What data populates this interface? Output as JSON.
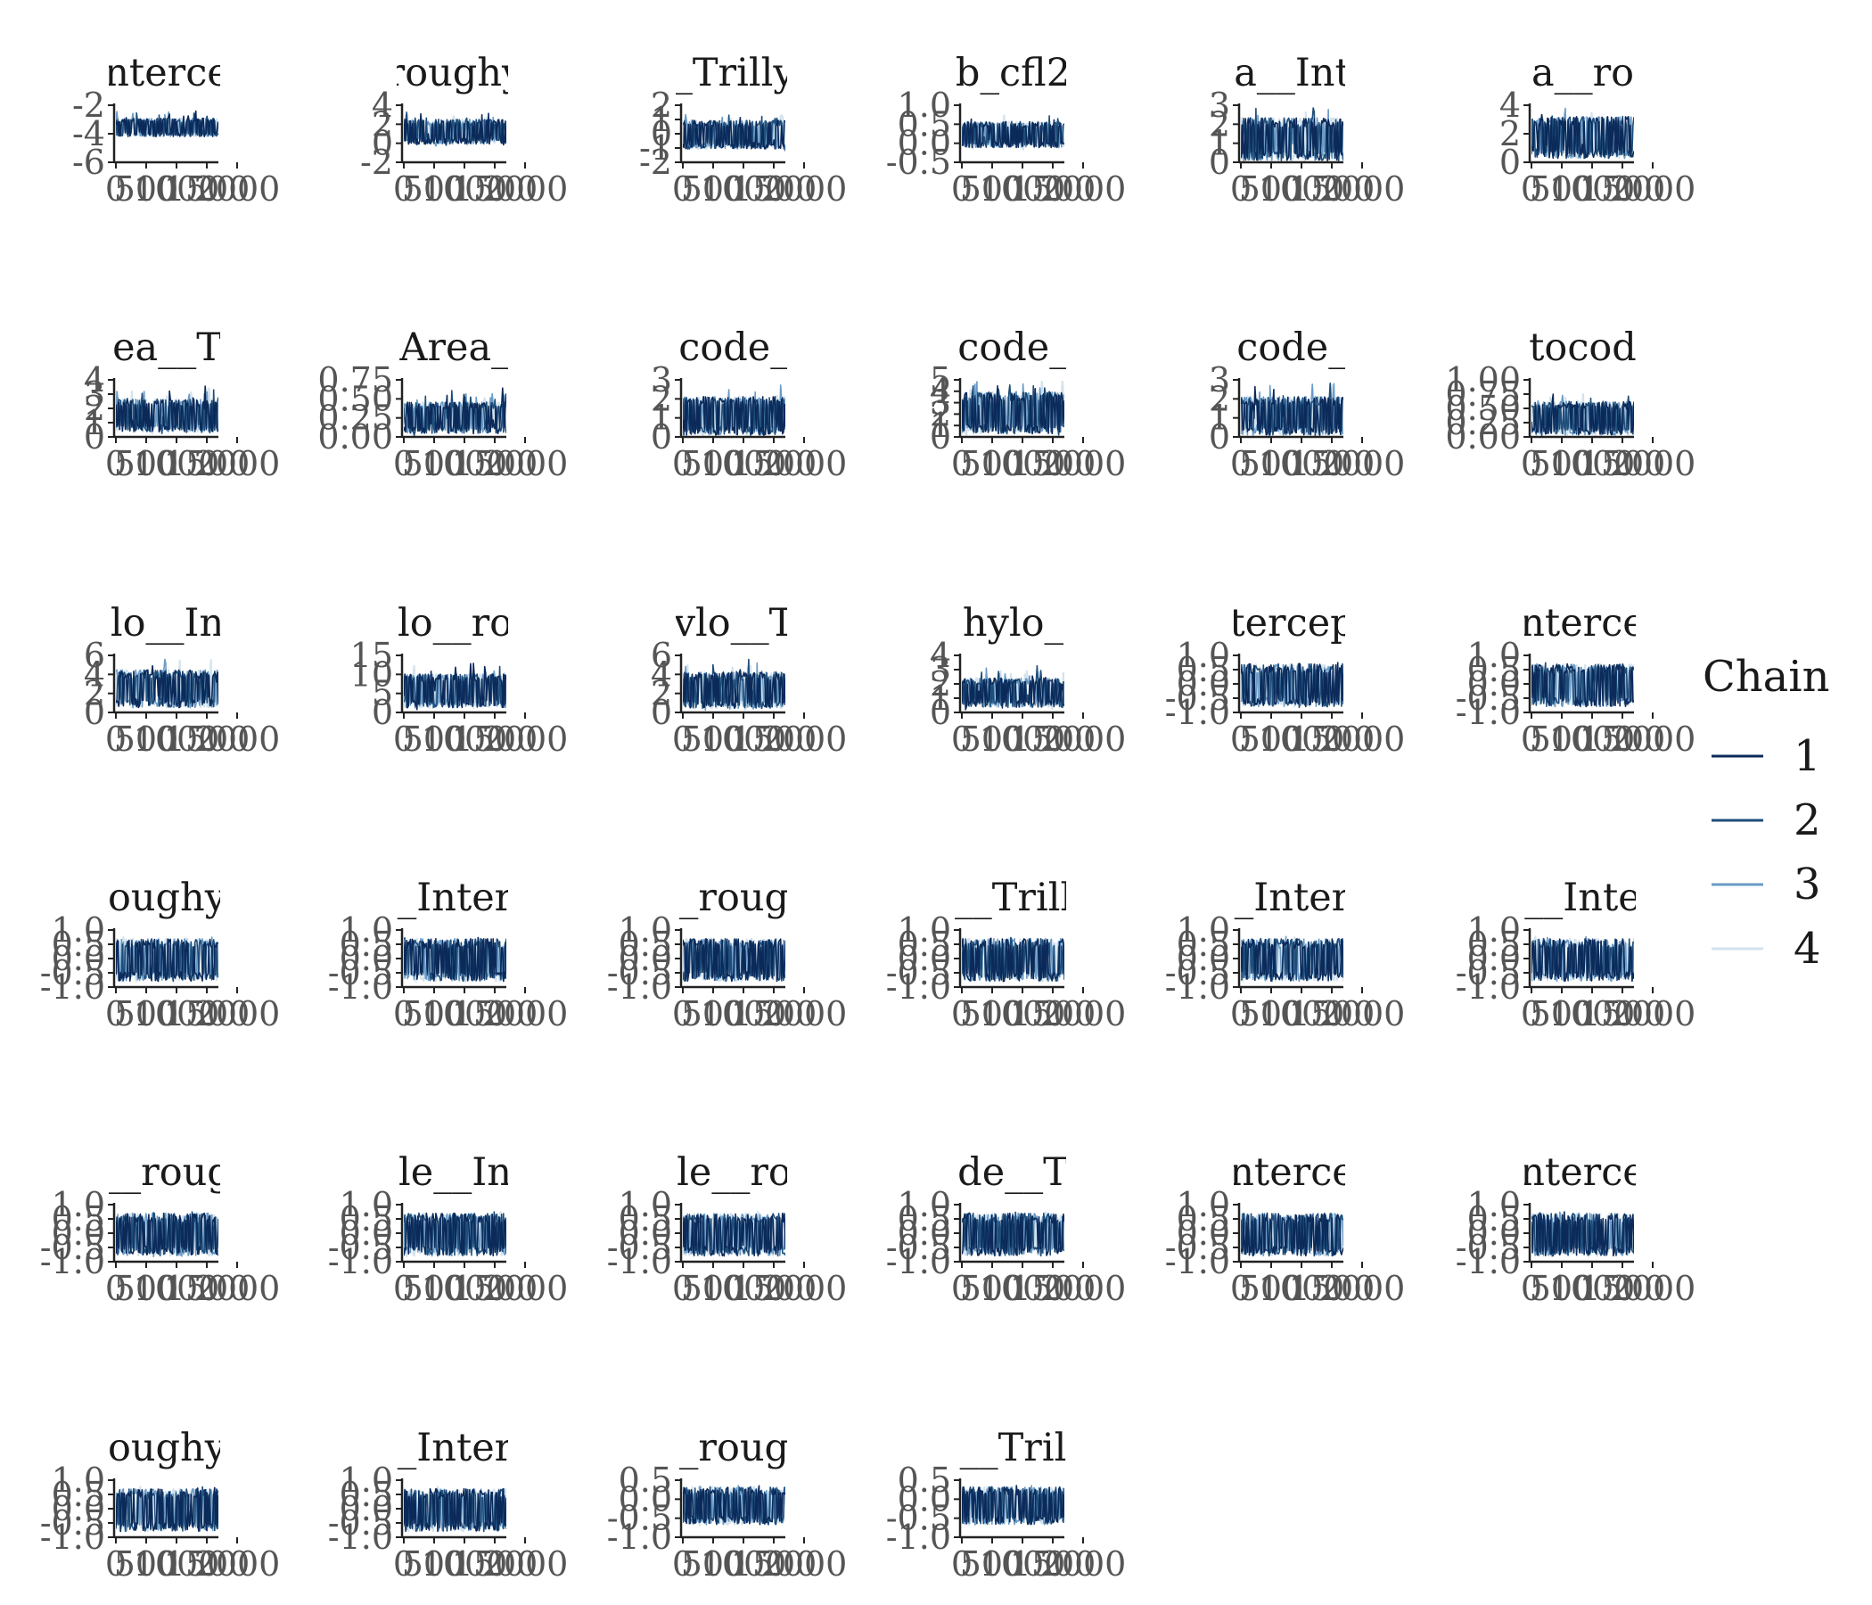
{
  "chart_data": {
    "type": "line",
    "legend": {
      "title": "Chain",
      "position": "right",
      "entries": [
        "1",
        "2",
        "3",
        "4"
      ]
    },
    "series_colors": [
      "#0b2a5a",
      "#1f4e7a",
      "#6b9bc6",
      "#d4e3ee"
    ],
    "x_ticks": [
      "0",
      "500",
      "1000",
      "1500",
      "2000"
    ],
    "xlim": [
      0,
      1700
    ],
    "panels": [
      {
        "title": "nterce",
        "yticks": [
          "-2",
          "-4",
          "-6"
        ],
        "ylim": [
          -6.6,
          -1.2
        ],
        "center": -3.2,
        "half": 0.9,
        "spike": 1.4
      },
      {
        "title": "roughy",
        "yticks": [
          "4",
          "2",
          "0",
          "-2"
        ],
        "ylim": [
          -2.6,
          5.0
        ],
        "center": 1.6,
        "half": 1.7,
        "spike": 1.8
      },
      {
        "title": "_Trilly",
        "yticks": [
          "2",
          "1",
          "0",
          "-1",
          "-2"
        ],
        "ylim": [
          -2.6,
          2.4
        ],
        "center": -0.1,
        "half": 1.3,
        "spike": 1.0
      },
      {
        "title": "b_cfl2",
        "yticks": [
          "1.0",
          "0.5",
          "0.0",
          "-0.5"
        ],
        "ylim": [
          -0.6,
          1.1
        ],
        "center": 0.25,
        "half": 0.4,
        "spike": 0.35
      },
      {
        "title": "a__Int",
        "yticks": [
          "3",
          "2",
          "1",
          "0"
        ],
        "ylim": [
          -0.1,
          3.5
        ],
        "center": 1.4,
        "half": 1.4,
        "spike": 1.3,
        "floor": 0
      },
      {
        "title": "a__ro",
        "yticks": [
          "4",
          "2",
          "0"
        ],
        "ylim": [
          -0.2,
          5.6
        ],
        "center": 2.4,
        "half": 2.2,
        "spike": 2.2,
        "floor": 0
      },
      {
        "title": "ea__T",
        "yticks": [
          "4",
          "3",
          "2",
          "1",
          "0"
        ],
        "ylim": [
          -0.1,
          4.3
        ],
        "center": 1.6,
        "half": 1.3,
        "spike": 1.6,
        "floor": 0
      },
      {
        "title": "Area_",
        "yticks": [
          "0.75",
          "0.50",
          "0.25",
          "0.00"
        ],
        "ylim": [
          -0.02,
          0.85
        ],
        "center": 0.28,
        "half": 0.25,
        "spike": 0.35,
        "floor": 0
      },
      {
        "title": "code_",
        "yticks": [
          "3",
          "2",
          "1",
          "0"
        ],
        "ylim": [
          -0.1,
          3.6
        ],
        "center": 1.3,
        "half": 1.3,
        "spike": 1.4,
        "floor": 0
      },
      {
        "title": "code_",
        "yticks": [
          "5",
          "4",
          "3",
          "2",
          "1",
          "0"
        ],
        "ylim": [
          -0.1,
          5.2
        ],
        "center": 2.2,
        "half": 2.0,
        "spike": 1.9,
        "floor": 0
      },
      {
        "title": "code_",
        "yticks": [
          "3",
          "2",
          "1",
          "0"
        ],
        "ylim": [
          -0.1,
          3.6
        ],
        "center": 1.3,
        "half": 1.3,
        "spike": 1.5,
        "floor": 0
      },
      {
        "title": "tocod",
        "yticks": [
          "1.00",
          "0.75",
          "0.50",
          "0.25",
          "0.00"
        ],
        "ylim": [
          -0.02,
          1.1
        ],
        "center": 0.36,
        "half": 0.34,
        "spike": 0.4,
        "floor": 0
      },
      {
        "title": "lo__In",
        "yticks": [
          "6",
          "4",
          "2",
          "0"
        ],
        "ylim": [
          -0.2,
          6.8
        ],
        "center": 2.8,
        "half": 2.4,
        "spike": 2.6,
        "floor": 0
      },
      {
        "title": "lo__ro",
        "yticks": [
          "15",
          "10",
          "5",
          "0"
        ],
        "ylim": [
          -0.5,
          17.5
        ],
        "center": 6.5,
        "half": 5.5,
        "spike": 6.5,
        "floor": 0
      },
      {
        "title": "vlo__T",
        "yticks": [
          "6",
          "4",
          "2",
          "0"
        ],
        "ylim": [
          -0.2,
          6.8
        ],
        "center": 2.6,
        "half": 2.3,
        "spike": 2.5,
        "floor": 0
      },
      {
        "title": "hylo_",
        "yticks": [
          "4",
          "3",
          "2",
          "1",
          "0"
        ],
        "ylim": [
          -0.1,
          4.4
        ],
        "center": 1.5,
        "half": 1.2,
        "spike": 1.6,
        "floor": 0
      },
      {
        "title": "tercep",
        "yticks": [
          "1.0",
          "0.5",
          "0.0",
          "-0.5",
          "-1.0"
        ],
        "ylim": [
          -1.08,
          1.12
        ],
        "center": 0.0,
        "half": 0.85,
        "spike": 0.15
      },
      {
        "title": "nterce",
        "yticks": [
          "1.0",
          "0.5",
          "0.0",
          "-0.5",
          "-1.0"
        ],
        "ylim": [
          -1.08,
          1.12
        ],
        "center": 0.0,
        "half": 0.85,
        "spike": 0.15
      },
      {
        "title": "oughy",
        "yticks": [
          "1.0",
          "0.5",
          "0.0",
          "-0.5",
          "-1.0"
        ],
        "ylim": [
          -1.08,
          1.12
        ],
        "center": 0.0,
        "half": 0.85,
        "spike": 0.15
      },
      {
        "title": "_Inter",
        "yticks": [
          "1.0",
          "0.5",
          "0.0",
          "-0.5",
          "-1.0"
        ],
        "ylim": [
          -1.08,
          1.12
        ],
        "center": 0.0,
        "half": 0.85,
        "spike": 0.15
      },
      {
        "title": "_roug",
        "yticks": [
          "1.0",
          "0.5",
          "0.0",
          "-0.5",
          "-1.0"
        ],
        "ylim": [
          -1.08,
          1.12
        ],
        "center": 0.0,
        "half": 0.85,
        "spike": 0.15
      },
      {
        "title": "__Trill",
        "yticks": [
          "1.0",
          "0.5",
          "0.0",
          "-0.5",
          "-1.0"
        ],
        "ylim": [
          -1.08,
          1.12
        ],
        "center": 0.0,
        "half": 0.85,
        "spike": 0.15
      },
      {
        "title": "_Inter",
        "yticks": [
          "1.0",
          "0.5",
          "0.0",
          "-0.5",
          "-1.0"
        ],
        "ylim": [
          -1.08,
          1.12
        ],
        "center": 0.0,
        "half": 0.85,
        "spike": 0.15
      },
      {
        "title": "__Inte",
        "yticks": [
          "1.0",
          "0.5",
          "0.0",
          "-0.5",
          "-1.0"
        ],
        "ylim": [
          -1.08,
          1.12
        ],
        "center": 0.0,
        "half": 0.85,
        "spike": 0.15
      },
      {
        "title": "__roug",
        "yticks": [
          "1.0",
          "0.5",
          "0.0",
          "-0.5",
          "-1.0"
        ],
        "ylim": [
          -1.08,
          1.12
        ],
        "center": 0.0,
        "half": 0.85,
        "spike": 0.15
      },
      {
        "title": "le__In",
        "yticks": [
          "1.0",
          "0.5",
          "0.0",
          "-0.5",
          "-1.0"
        ],
        "ylim": [
          -1.08,
          1.12
        ],
        "center": 0.0,
        "half": 0.85,
        "spike": 0.15
      },
      {
        "title": "le__ro",
        "yticks": [
          "1.0",
          "0.5",
          "0.0",
          "-0.5",
          "-1.0"
        ],
        "ylim": [
          -1.08,
          1.12
        ],
        "center": 0.0,
        "half": 0.85,
        "spike": 0.15
      },
      {
        "title": "de__T",
        "yticks": [
          "1.0",
          "0.5",
          "0.0",
          "-0.5",
          "-1.0"
        ],
        "ylim": [
          -1.08,
          1.12
        ],
        "center": 0.0,
        "half": 0.85,
        "spike": 0.15
      },
      {
        "title": "nterce",
        "yticks": [
          "1.0",
          "0.5",
          "0.0",
          "-0.5",
          "-1.0"
        ],
        "ylim": [
          -1.08,
          1.12
        ],
        "center": 0.0,
        "half": 0.85,
        "spike": 0.15
      },
      {
        "title": "nterce",
        "yticks": [
          "1.0",
          "0.5",
          "0.0",
          "-0.5",
          "-1.0"
        ],
        "ylim": [
          -1.08,
          1.12
        ],
        "center": 0.0,
        "half": 0.85,
        "spike": 0.15
      },
      {
        "title": "oughy",
        "yticks": [
          "1.0",
          "0.5",
          "0.0",
          "-0.5",
          "-1.0"
        ],
        "ylim": [
          -1.08,
          1.12
        ],
        "center": 0.0,
        "half": 0.85,
        "spike": 0.15
      },
      {
        "title": "_Inter",
        "yticks": [
          "1.0",
          "0.5",
          "0.0",
          "-0.5",
          "-1.0"
        ],
        "ylim": [
          -1.08,
          1.12
        ],
        "center": 0.0,
        "half": 0.85,
        "spike": 0.15
      },
      {
        "title": "_roug",
        "yticks": [
          "0.5",
          "0.0",
          "-0.5",
          "-1.0"
        ],
        "ylim": [
          -1.08,
          0.82
        ],
        "center": 0.0,
        "half": 0.65,
        "spike": 0.12
      },
      {
        "title": "__Tril",
        "yticks": [
          "0.5",
          "0.0",
          "-0.5",
          "-1.0"
        ],
        "ylim": [
          -1.08,
          0.82
        ],
        "center": 0.0,
        "half": 0.65,
        "spike": 0.12
      }
    ]
  }
}
